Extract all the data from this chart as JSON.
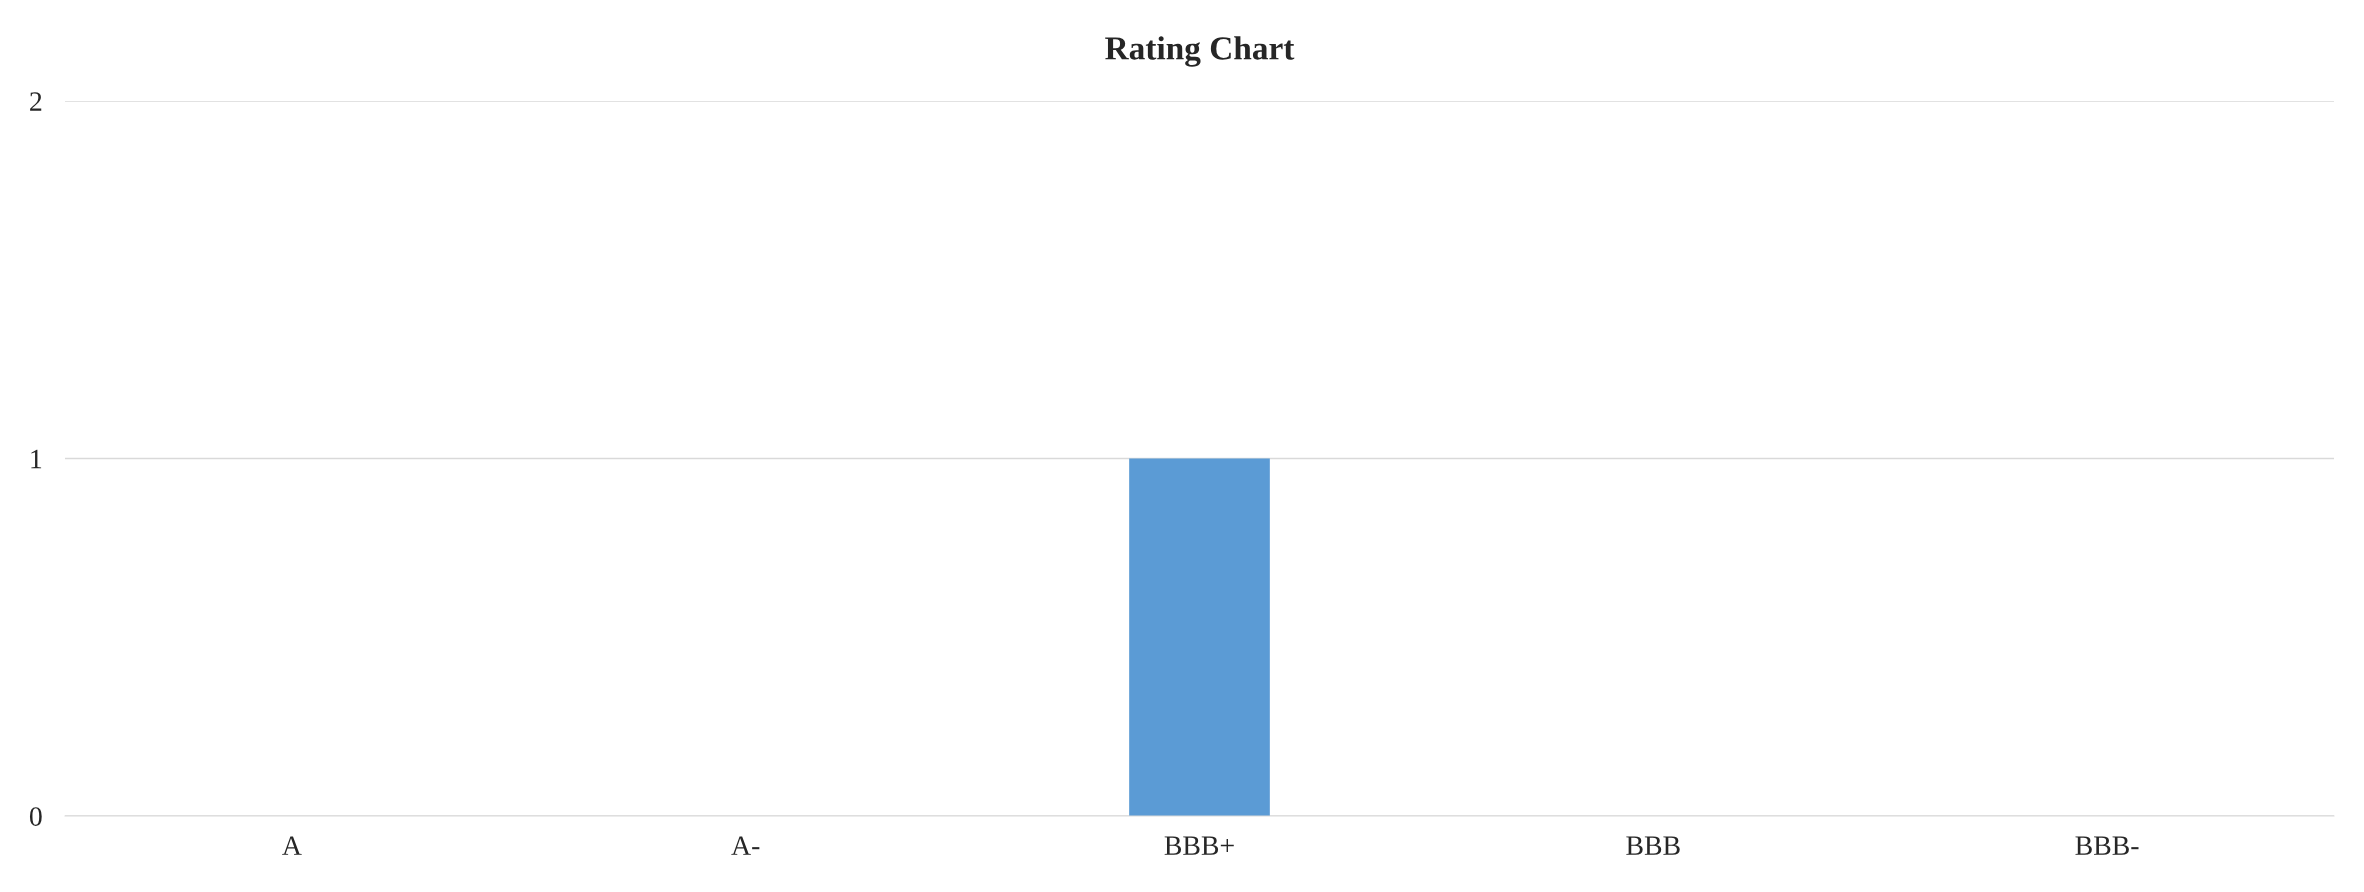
{
  "chart_data": {
    "type": "bar",
    "title": "Rating Chart",
    "categories": [
      "A",
      "A-",
      "BBB+",
      "BBB",
      "BBB-"
    ],
    "values": [
      0,
      0,
      1,
      0,
      0
    ],
    "color": "#5b9bd5",
    "ylim": [
      0,
      2
    ],
    "yticks": [
      0,
      1,
      2
    ],
    "grid": "y"
  }
}
